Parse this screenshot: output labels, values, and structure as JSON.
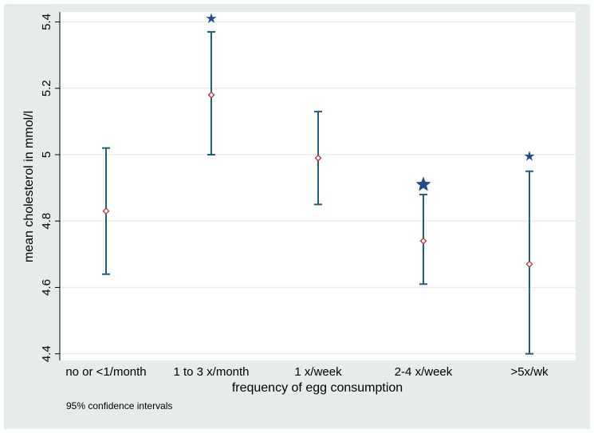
{
  "chart_data": {
    "type": "errorbar",
    "title": "",
    "xlabel": "frequency of egg consumption",
    "ylabel": "mean cholesterol in mmol/l",
    "note": "95% confidence intervals",
    "categories": [
      "no or <1/month",
      "1 to 3 x/month",
      "1 x/week",
      "2-4 x/week",
      ">5x/wk"
    ],
    "means": [
      4.83,
      5.18,
      4.99,
      4.74,
      4.67
    ],
    "ci_lower": [
      4.64,
      5.0,
      4.85,
      4.61,
      4.4
    ],
    "ci_upper": [
      5.02,
      5.37,
      5.13,
      4.88,
      4.95
    ],
    "stars": [
      null,
      5.41,
      null,
      4.91,
      4.995
    ],
    "star_styles": [
      null,
      "small",
      null,
      "large",
      "small"
    ],
    "ylim": [
      4.38,
      5.43
    ],
    "yticks": [
      4.4,
      4.6,
      4.8,
      5.0,
      5.2,
      5.4
    ],
    "ytick_labels": [
      "4.4",
      "4.6",
      "4.8",
      "5",
      "5.2",
      "5.4"
    ],
    "grid": true,
    "colors": {
      "background": "#e6ece8",
      "plot_area": "#ffffff",
      "gridline": "#e6ece8",
      "errorbar": "#1f5f7e",
      "mean_marker": "#b5343c",
      "star": "#1a4f8c"
    }
  }
}
